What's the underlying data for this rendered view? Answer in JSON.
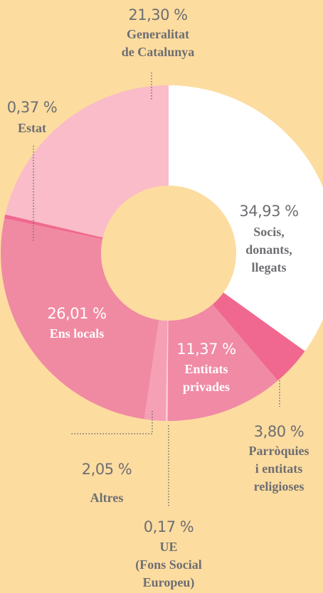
{
  "chart_data": {
    "type": "donut",
    "categories": [
      [
        "Socis,",
        "donants,",
        "llegats"
      ],
      [
        "Parròquies",
        "i entitats",
        "religioses"
      ],
      [
        "Entitats",
        "privades"
      ],
      [
        "UE",
        "(Fons Social",
        "Europeu)"
      ],
      [
        "Altres"
      ],
      [
        "Ens locals"
      ],
      [
        "Estat"
      ],
      [
        "Generalitat",
        "de Catalunya"
      ]
    ],
    "values": [
      34.93,
      3.8,
      11.37,
      0.17,
      2.05,
      26.01,
      0.37,
      21.3
    ],
    "value_labels": [
      "34,93 %",
      "3,80 %",
      "11,37 %",
      "0,17 %",
      "2,05 %",
      "26,01 %",
      "0,37 %",
      "21,30 %"
    ],
    "colors": [
      "#ffffff",
      "#f06890",
      "#f08aa5",
      "#fbd0da",
      "#f5a0b5",
      "#f08aa2",
      "#f06890",
      "#f9bcc8"
    ]
  }
}
